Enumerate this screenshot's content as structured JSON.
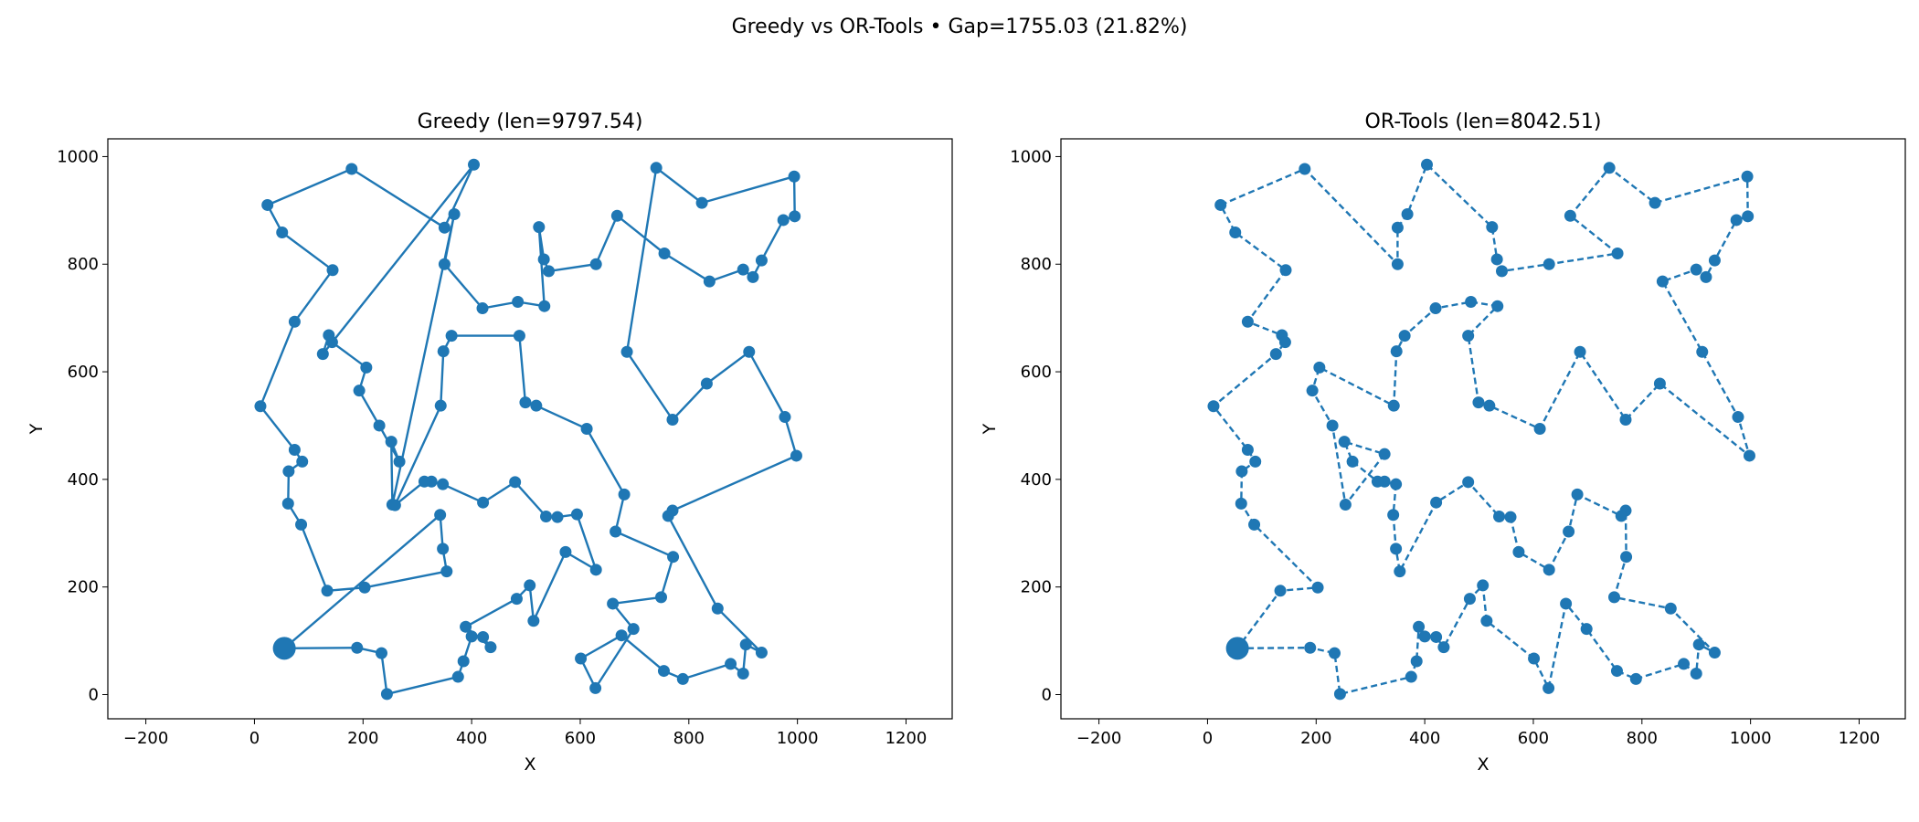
{
  "suptitle": "Greedy vs OR-Tools • Gap=1755.03 (21.82%)",
  "colors": {
    "route": "#1f77b4"
  },
  "chart_data": [
    {
      "type": "line",
      "title": "Greedy (len=9797.54)",
      "xlabel": "X",
      "ylabel": "Y",
      "xlim": [
        -270,
        1285
      ],
      "ylim": [
        -45,
        1033
      ],
      "xticks": [
        -200,
        0,
        200,
        400,
        600,
        800,
        1000,
        1200
      ],
      "yticks": [
        0,
        200,
        400,
        600,
        800,
        1000
      ],
      "line_style": "solid",
      "grid": false,
      "start": {
        "x": 55,
        "y": 86
      },
      "route": [
        {
          "x": 55,
          "y": 86
        },
        {
          "x": 189,
          "y": 87
        },
        {
          "x": 234,
          "y": 77
        },
        {
          "x": 244,
          "y": 1
        },
        {
          "x": 375,
          "y": 33
        },
        {
          "x": 385,
          "y": 62
        },
        {
          "x": 400,
          "y": 108
        },
        {
          "x": 421,
          "y": 107
        },
        {
          "x": 435,
          "y": 88
        },
        {
          "x": 389,
          "y": 126
        },
        {
          "x": 483,
          "y": 178
        },
        {
          "x": 507,
          "y": 203
        },
        {
          "x": 514,
          "y": 137
        },
        {
          "x": 573,
          "y": 265
        },
        {
          "x": 629,
          "y": 232
        },
        {
          "x": 594,
          "y": 335
        },
        {
          "x": 558,
          "y": 330
        },
        {
          "x": 537,
          "y": 331
        },
        {
          "x": 480,
          "y": 395
        },
        {
          "x": 421,
          "y": 357
        },
        {
          "x": 347,
          "y": 391
        },
        {
          "x": 326,
          "y": 396
        },
        {
          "x": 313,
          "y": 396
        },
        {
          "x": 259,
          "y": 352
        },
        {
          "x": 343,
          "y": 537
        },
        {
          "x": 348,
          "y": 638
        },
        {
          "x": 363,
          "y": 667
        },
        {
          "x": 488,
          "y": 667
        },
        {
          "x": 499,
          "y": 543
        },
        {
          "x": 519,
          "y": 537
        },
        {
          "x": 612,
          "y": 494
        },
        {
          "x": 681,
          "y": 372
        },
        {
          "x": 665,
          "y": 303
        },
        {
          "x": 771,
          "y": 256
        },
        {
          "x": 749,
          "y": 181
        },
        {
          "x": 660,
          "y": 169
        },
        {
          "x": 698,
          "y": 122
        },
        {
          "x": 628,
          "y": 12
        },
        {
          "x": 601,
          "y": 67
        },
        {
          "x": 676,
          "y": 110
        },
        {
          "x": 754,
          "y": 44
        },
        {
          "x": 789,
          "y": 29
        },
        {
          "x": 877,
          "y": 57
        },
        {
          "x": 900,
          "y": 39
        },
        {
          "x": 905,
          "y": 93
        },
        {
          "x": 934,
          "y": 78
        },
        {
          "x": 853,
          "y": 160
        },
        {
          "x": 762,
          "y": 332
        },
        {
          "x": 770,
          "y": 342
        },
        {
          "x": 998,
          "y": 444
        },
        {
          "x": 977,
          "y": 516
        },
        {
          "x": 911,
          "y": 637
        },
        {
          "x": 833,
          "y": 578
        },
        {
          "x": 770,
          "y": 511
        },
        {
          "x": 686,
          "y": 637
        },
        {
          "x": 740,
          "y": 979
        },
        {
          "x": 824,
          "y": 914
        },
        {
          "x": 994,
          "y": 963
        },
        {
          "x": 995,
          "y": 889
        },
        {
          "x": 974,
          "y": 882
        },
        {
          "x": 934,
          "y": 807
        },
        {
          "x": 918,
          "y": 776
        },
        {
          "x": 900,
          "y": 790
        },
        {
          "x": 838,
          "y": 768
        },
        {
          "x": 755,
          "y": 820
        },
        {
          "x": 668,
          "y": 890
        },
        {
          "x": 629,
          "y": 800
        },
        {
          "x": 542,
          "y": 787
        },
        {
          "x": 533,
          "y": 809
        },
        {
          "x": 524,
          "y": 869
        },
        {
          "x": 534,
          "y": 722
        },
        {
          "x": 485,
          "y": 730
        },
        {
          "x": 420,
          "y": 718
        },
        {
          "x": 350,
          "y": 800
        },
        {
          "x": 368,
          "y": 893
        },
        {
          "x": 254,
          "y": 353
        },
        {
          "x": 252,
          "y": 470
        },
        {
          "x": 267,
          "y": 433
        },
        {
          "x": 230,
          "y": 500
        },
        {
          "x": 193,
          "y": 565
        },
        {
          "x": 206,
          "y": 608
        },
        {
          "x": 143,
          "y": 655
        },
        {
          "x": 137,
          "y": 668
        },
        {
          "x": 126,
          "y": 633
        },
        {
          "x": 404,
          "y": 985
        },
        {
          "x": 350,
          "y": 868
        },
        {
          "x": 179,
          "y": 977
        },
        {
          "x": 24,
          "y": 910
        },
        {
          "x": 51,
          "y": 859
        },
        {
          "x": 144,
          "y": 789
        },
        {
          "x": 74,
          "y": 693
        },
        {
          "x": 11,
          "y": 536
        },
        {
          "x": 74,
          "y": 455
        },
        {
          "x": 88,
          "y": 433
        },
        {
          "x": 63,
          "y": 415
        },
        {
          "x": 62,
          "y": 355
        },
        {
          "x": 86,
          "y": 316
        },
        {
          "x": 134,
          "y": 193
        },
        {
          "x": 203,
          "y": 199
        },
        {
          "x": 354,
          "y": 229
        },
        {
          "x": 347,
          "y": 271
        },
        {
          "x": 342,
          "y": 334
        },
        {
          "x": 55,
          "y": 86
        }
      ]
    },
    {
      "type": "line",
      "title": "OR-Tools (len=8042.51)",
      "xlabel": "X",
      "ylabel": "Y",
      "xlim": [
        -270,
        1285
      ],
      "ylim": [
        -45,
        1033
      ],
      "xticks": [
        -200,
        0,
        200,
        400,
        600,
        800,
        1000,
        1200
      ],
      "yticks": [
        0,
        200,
        400,
        600,
        800,
        1000
      ],
      "line_style": "dashed",
      "grid": false,
      "start": {
        "x": 55,
        "y": 86
      },
      "route": [
        {
          "x": 55,
          "y": 86
        },
        {
          "x": 189,
          "y": 87
        },
        {
          "x": 234,
          "y": 77
        },
        {
          "x": 244,
          "y": 1
        },
        {
          "x": 375,
          "y": 33
        },
        {
          "x": 385,
          "y": 62
        },
        {
          "x": 389,
          "y": 126
        },
        {
          "x": 400,
          "y": 108
        },
        {
          "x": 421,
          "y": 107
        },
        {
          "x": 435,
          "y": 88
        },
        {
          "x": 483,
          "y": 178
        },
        {
          "x": 507,
          "y": 203
        },
        {
          "x": 514,
          "y": 137
        },
        {
          "x": 601,
          "y": 67
        },
        {
          "x": 628,
          "y": 12
        },
        {
          "x": 660,
          "y": 169
        },
        {
          "x": 698,
          "y": 122
        },
        {
          "x": 754,
          "y": 44
        },
        {
          "x": 789,
          "y": 29
        },
        {
          "x": 877,
          "y": 57
        },
        {
          "x": 900,
          "y": 39
        },
        {
          "x": 905,
          "y": 93
        },
        {
          "x": 934,
          "y": 78
        },
        {
          "x": 853,
          "y": 160
        },
        {
          "x": 749,
          "y": 181
        },
        {
          "x": 771,
          "y": 256
        },
        {
          "x": 770,
          "y": 342
        },
        {
          "x": 762,
          "y": 332
        },
        {
          "x": 681,
          "y": 372
        },
        {
          "x": 665,
          "y": 303
        },
        {
          "x": 629,
          "y": 232
        },
        {
          "x": 573,
          "y": 265
        },
        {
          "x": 558,
          "y": 330
        },
        {
          "x": 537,
          "y": 331
        },
        {
          "x": 480,
          "y": 395
        },
        {
          "x": 421,
          "y": 357
        },
        {
          "x": 354,
          "y": 229
        },
        {
          "x": 347,
          "y": 271
        },
        {
          "x": 342,
          "y": 334
        },
        {
          "x": 347,
          "y": 391
        },
        {
          "x": 326,
          "y": 396
        },
        {
          "x": 313,
          "y": 396
        },
        {
          "x": 267,
          "y": 433
        },
        {
          "x": 252,
          "y": 470
        },
        {
          "x": 326,
          "y": 447
        },
        {
          "x": 254,
          "y": 353
        },
        {
          "x": 230,
          "y": 500
        },
        {
          "x": 193,
          "y": 565
        },
        {
          "x": 206,
          "y": 608
        },
        {
          "x": 343,
          "y": 537
        },
        {
          "x": 348,
          "y": 638
        },
        {
          "x": 363,
          "y": 667
        },
        {
          "x": 420,
          "y": 718
        },
        {
          "x": 485,
          "y": 730
        },
        {
          "x": 534,
          "y": 722
        },
        {
          "x": 480,
          "y": 667
        },
        {
          "x": 499,
          "y": 543
        },
        {
          "x": 519,
          "y": 537
        },
        {
          "x": 612,
          "y": 494
        },
        {
          "x": 686,
          "y": 637
        },
        {
          "x": 770,
          "y": 511
        },
        {
          "x": 833,
          "y": 578
        },
        {
          "x": 998,
          "y": 444
        },
        {
          "x": 977,
          "y": 516
        },
        {
          "x": 911,
          "y": 637
        },
        {
          "x": 838,
          "y": 768
        },
        {
          "x": 900,
          "y": 790
        },
        {
          "x": 918,
          "y": 776
        },
        {
          "x": 934,
          "y": 807
        },
        {
          "x": 974,
          "y": 882
        },
        {
          "x": 995,
          "y": 889
        },
        {
          "x": 994,
          "y": 963
        },
        {
          "x": 824,
          "y": 914
        },
        {
          "x": 740,
          "y": 979
        },
        {
          "x": 668,
          "y": 890
        },
        {
          "x": 755,
          "y": 820
        },
        {
          "x": 629,
          "y": 800
        },
        {
          "x": 542,
          "y": 787
        },
        {
          "x": 533,
          "y": 809
        },
        {
          "x": 524,
          "y": 869
        },
        {
          "x": 404,
          "y": 985
        },
        {
          "x": 368,
          "y": 893
        },
        {
          "x": 350,
          "y": 868
        },
        {
          "x": 350,
          "y": 800
        },
        {
          "x": 179,
          "y": 977
        },
        {
          "x": 24,
          "y": 910
        },
        {
          "x": 51,
          "y": 859
        },
        {
          "x": 144,
          "y": 789
        },
        {
          "x": 74,
          "y": 693
        },
        {
          "x": 137,
          "y": 668
        },
        {
          "x": 143,
          "y": 655
        },
        {
          "x": 126,
          "y": 633
        },
        {
          "x": 11,
          "y": 536
        },
        {
          "x": 74,
          "y": 455
        },
        {
          "x": 88,
          "y": 433
        },
        {
          "x": 63,
          "y": 415
        },
        {
          "x": 62,
          "y": 355
        },
        {
          "x": 86,
          "y": 316
        },
        {
          "x": 203,
          "y": 199
        },
        {
          "x": 134,
          "y": 193
        },
        {
          "x": 55,
          "y": 86
        }
      ]
    }
  ]
}
